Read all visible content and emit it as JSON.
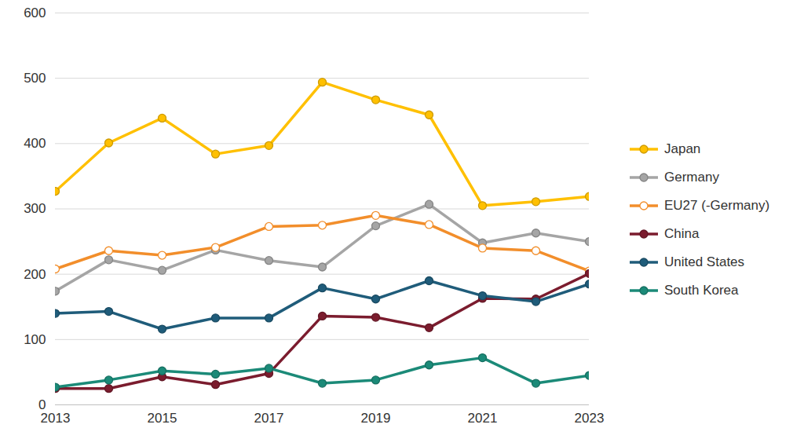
{
  "chart_data": {
    "type": "line",
    "x": [
      2013,
      2014,
      2015,
      2016,
      2017,
      2018,
      2019,
      2020,
      2021,
      2022,
      2023
    ],
    "xlim": [
      2013,
      2023
    ],
    "xticks": [
      2013,
      2015,
      2017,
      2019,
      2021,
      2023
    ],
    "ylim": [
      0,
      600
    ],
    "yticks": [
      0,
      100,
      200,
      300,
      400,
      500,
      600
    ],
    "grid": true,
    "legend": "right",
    "series": [
      {
        "name": "Japan",
        "color": "#ffc000",
        "marker": "circle",
        "values": [
          327,
          401,
          439,
          384,
          397,
          494,
          467,
          444,
          305,
          311,
          319
        ]
      },
      {
        "name": "Germany",
        "color": "#a5a5a5",
        "marker": "circle",
        "values": [
          174,
          222,
          206,
          237,
          221,
          211,
          274,
          307,
          248,
          263,
          250
        ]
      },
      {
        "name": "EU27 (-Germany)",
        "color": "#f28e2b",
        "marker": "open_circle",
        "values": [
          208,
          236,
          229,
          241,
          273,
          275,
          290,
          276,
          240,
          236,
          205
        ]
      },
      {
        "name": "China",
        "color": "#7b1c2e",
        "marker": "circle",
        "values": [
          25,
          25,
          43,
          31,
          48,
          136,
          134,
          118,
          163,
          162,
          201
        ]
      },
      {
        "name": "United States",
        "color": "#1f5c7a",
        "marker": "circle",
        "values": [
          140,
          143,
          116,
          133,
          133,
          179,
          162,
          190,
          167,
          158,
          185
        ]
      },
      {
        "name": "South Korea",
        "color": "#1b8a78",
        "marker": "circle",
        "values": [
          27,
          38,
          52,
          47,
          56,
          33,
          38,
          61,
          72,
          33,
          45
        ]
      }
    ]
  }
}
